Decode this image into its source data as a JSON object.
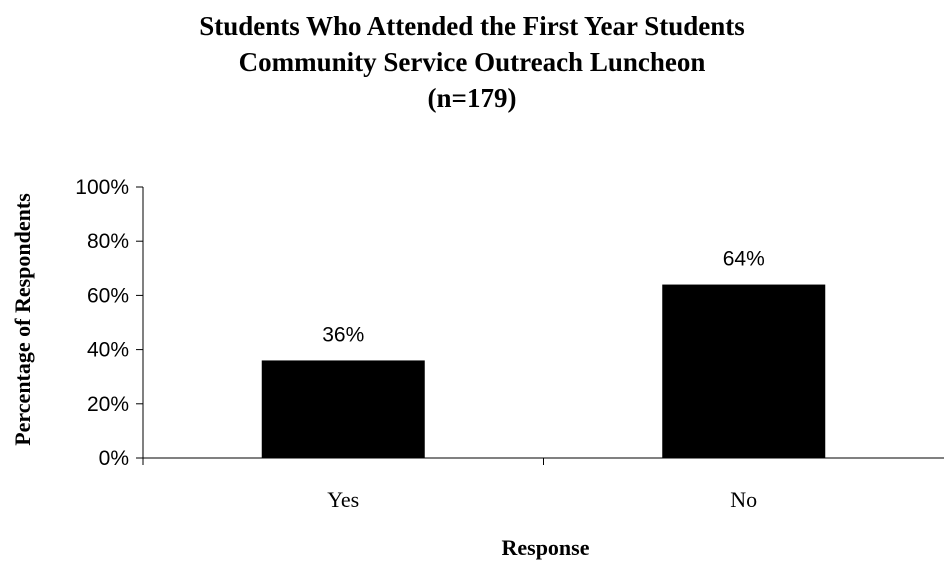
{
  "chart_data": {
    "type": "bar",
    "title_lines": [
      "Students Who Attended the First Year Students",
      "Community Service Outreach Luncheon",
      "(n=179)"
    ],
    "categories": [
      "Yes",
      "No"
    ],
    "values": [
      36,
      64
    ],
    "data_labels": [
      "36%",
      "64%"
    ],
    "xlabel": "Response",
    "ylabel": "Percentage of Respondents",
    "ylim": [
      0,
      100
    ],
    "yticks": [
      0,
      20,
      40,
      60,
      80,
      100
    ],
    "ytick_labels": [
      "0%",
      "20%",
      "40%",
      "60%",
      "80%",
      "100%"
    ],
    "grid": false,
    "legend": "none",
    "bar_color": "#000000"
  }
}
